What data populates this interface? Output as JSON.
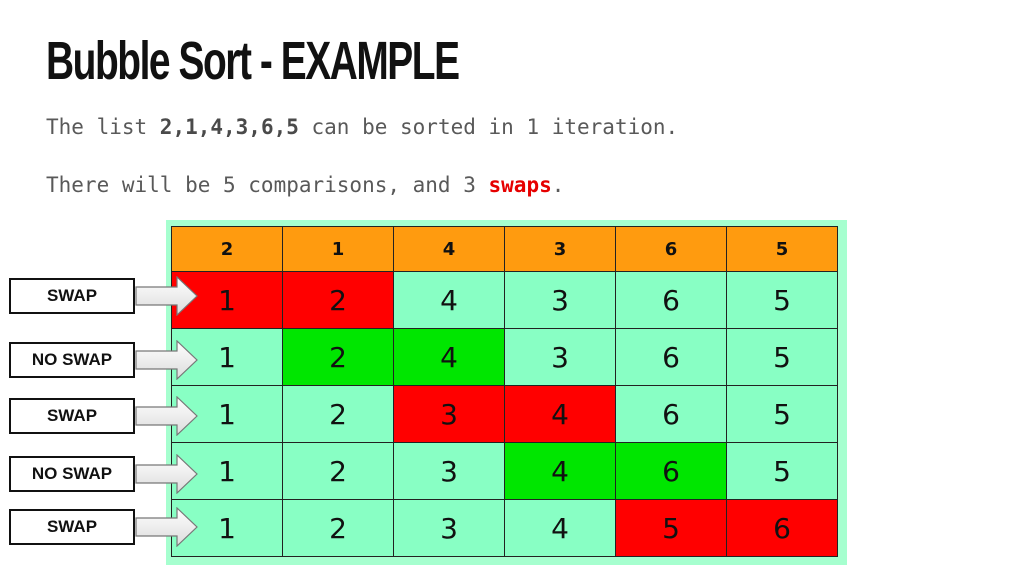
{
  "title": "Bubble Sort - EXAMPLE",
  "line1": {
    "prefix": "The list ",
    "list": "2,1,4,3,6,5",
    "suffix": " can be sorted in 1 iteration."
  },
  "line2": {
    "prefix": "There will be 5 comparisons, and 3 ",
    "highlight": "swaps",
    "suffix": "."
  },
  "header_row": [
    "2",
    "1",
    "4",
    "3",
    "6",
    "5"
  ],
  "rows": [
    {
      "label": "SWAP",
      "values": [
        "1",
        "2",
        "4",
        "3",
        "6",
        "5"
      ]
    },
    {
      "label": "NO SWAP",
      "values": [
        "1",
        "2",
        "4",
        "3",
        "6",
        "5"
      ]
    },
    {
      "label": "SWAP",
      "values": [
        "1",
        "2",
        "3",
        "4",
        "6",
        "5"
      ]
    },
    {
      "label": "NO SWAP",
      "values": [
        "1",
        "2",
        "3",
        "4",
        "6",
        "5"
      ]
    },
    {
      "label": "SWAP",
      "values": [
        "1",
        "2",
        "3",
        "4",
        "5",
        "6"
      ]
    }
  ],
  "colors": {
    "header": "#ff9b0f",
    "cell": "#88ffc4",
    "swap": "#ff0000",
    "no_swap": "#00e600",
    "table_background": "#a6ffcf",
    "highlight_text": "#e60000"
  }
}
